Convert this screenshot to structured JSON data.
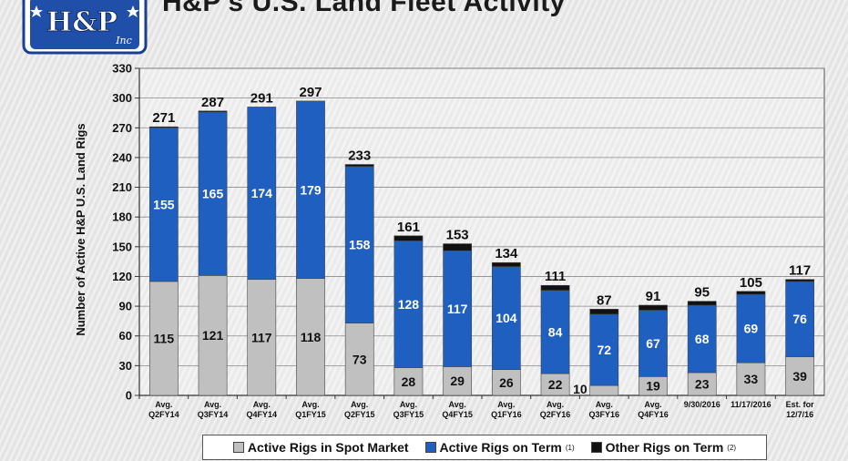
{
  "title": "H&P’s U.S. Land Fleet Activity",
  "logo": {
    "main_text": "H&P",
    "sub_text": "Inc"
  },
  "colors": {
    "spot": "#c0c0c0",
    "term": "#1f5fbf",
    "other": "#111111",
    "background": "#e9e9e9"
  },
  "legend": [
    {
      "name": "Active Rigs in Spot Market",
      "note": "",
      "color": "#c0c0c0"
    },
    {
      "name": "Active Rigs on Term",
      "note": "(1)",
      "color": "#1f5fbf"
    },
    {
      "name": "Other Rigs on Term",
      "note": "(2)",
      "color": "#111111"
    }
  ],
  "chart_data": {
    "type": "bar",
    "stacked": true,
    "title": "H&P’s U.S. Land Fleet Activity",
    "ylabel": "Number of Active H&P U.S. Land Rigs",
    "xlabel": "",
    "ylim": [
      0,
      330
    ],
    "yticks": [
      0,
      30,
      60,
      90,
      120,
      150,
      180,
      210,
      240,
      270,
      300,
      330
    ],
    "grid": true,
    "legend_position": "bottom",
    "categories": [
      [
        "Avg.",
        "Q2FY14"
      ],
      [
        "Avg.",
        "Q3FY14"
      ],
      [
        "Avg.",
        "Q4FY14"
      ],
      [
        "Avg.",
        "Q1FY15"
      ],
      [
        "Avg.",
        "Q2FY15"
      ],
      [
        "Avg.",
        "Q3FY15"
      ],
      [
        "Avg.",
        "Q4FY15"
      ],
      [
        "Avg.",
        "Q1FY16"
      ],
      [
        "Avg.",
        "Q2FY16"
      ],
      [
        "Avg.",
        "Q3FY16"
      ],
      [
        "Avg.",
        "Q4FY16"
      ],
      [
        "9/30/2016"
      ],
      [
        "11/17/2016"
      ],
      [
        "Est. for",
        "12/7/16"
      ]
    ],
    "series": [
      {
        "name": "Active Rigs in Spot Market",
        "values": [
          115,
          121,
          117,
          118,
          73,
          28,
          29,
          26,
          22,
          10,
          19,
          23,
          33,
          39
        ]
      },
      {
        "name": "Active Rigs on Term",
        "values": [
          155,
          165,
          174,
          179,
          158,
          128,
          117,
          104,
          84,
          72,
          67,
          68,
          69,
          76
        ]
      },
      {
        "name": "Other Rigs on Term",
        "values": [
          1,
          1,
          0,
          0,
          2,
          5,
          7,
          4,
          5,
          5,
          5,
          4,
          3,
          2
        ]
      }
    ],
    "totals": [
      271,
      287,
      291,
      297,
      233,
      161,
      153,
      134,
      111,
      87,
      91,
      95,
      105,
      117
    ]
  }
}
